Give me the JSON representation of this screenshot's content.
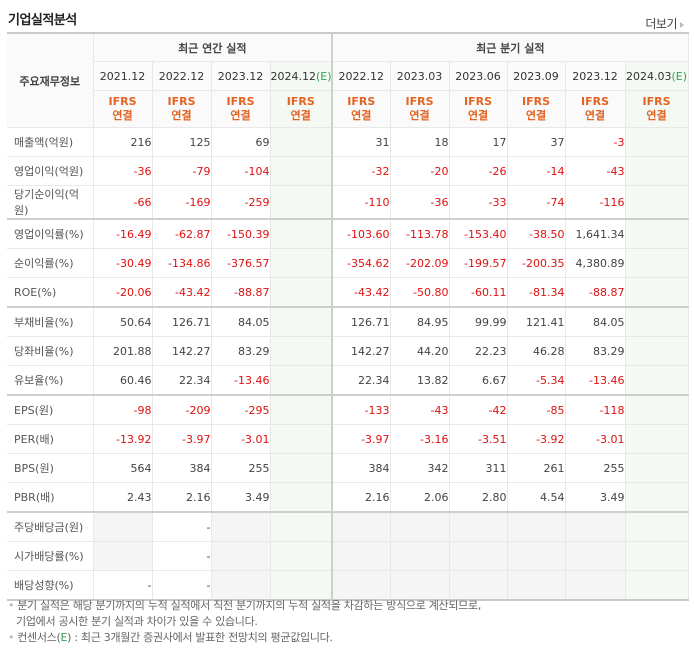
{
  "header": {
    "title": "기업실적분석",
    "more_label": "더보기"
  },
  "table": {
    "label_header": "주요재무정보",
    "group_annual": "최근 연간 실적",
    "group_quarter": "최근 분기 실적",
    "periods": [
      {
        "date": "2021.12",
        "est": ""
      },
      {
        "date": "2022.12",
        "est": ""
      },
      {
        "date": "2023.12",
        "est": ""
      },
      {
        "date": "2024.12",
        "est": "(E)"
      },
      {
        "date": "2022.12",
        "est": ""
      },
      {
        "date": "2023.03",
        "est": ""
      },
      {
        "date": "2023.06",
        "est": ""
      },
      {
        "date": "2023.09",
        "est": ""
      },
      {
        "date": "2023.12",
        "est": ""
      },
      {
        "date": "2024.03",
        "est": "(E)"
      }
    ],
    "standard_line1": "IFRS",
    "standard_line2": "연결",
    "rows": [
      {
        "label": "매출액(억원)",
        "values": [
          "216",
          "125",
          "69",
          "",
          "31",
          "18",
          "17",
          "37",
          "-3",
          ""
        ]
      },
      {
        "label": "영업이익(억원)",
        "values": [
          "-36",
          "-79",
          "-104",
          "",
          "-32",
          "-20",
          "-26",
          "-14",
          "-43",
          ""
        ]
      },
      {
        "label": "당기순이익(억원)",
        "values": [
          "-66",
          "-169",
          "-259",
          "",
          "-110",
          "-36",
          "-33",
          "-74",
          "-116",
          ""
        ]
      },
      {
        "label": "영업이익률(%)",
        "values": [
          "-16.49",
          "-62.87",
          "-150.39",
          "",
          "-103.60",
          "-113.78",
          "-153.40",
          "-38.50",
          "1,641.34",
          ""
        ]
      },
      {
        "label": "순이익률(%)",
        "values": [
          "-30.49",
          "-134.86",
          "-376.57",
          "",
          "-354.62",
          "-202.09",
          "-199.57",
          "-200.35",
          "4,380.89",
          ""
        ]
      },
      {
        "label": "ROE(%)",
        "values": [
          "-20.06",
          "-43.42",
          "-88.87",
          "",
          "-43.42",
          "-50.80",
          "-60.11",
          "-81.34",
          "-88.87",
          ""
        ]
      },
      {
        "label": "부채비율(%)",
        "values": [
          "50.64",
          "126.71",
          "84.05",
          "",
          "126.71",
          "84.95",
          "99.99",
          "121.41",
          "84.05",
          ""
        ]
      },
      {
        "label": "당좌비율(%)",
        "values": [
          "201.88",
          "142.27",
          "83.29",
          "",
          "142.27",
          "44.20",
          "22.23",
          "46.28",
          "83.29",
          ""
        ]
      },
      {
        "label": "유보율(%)",
        "values": [
          "60.46",
          "22.34",
          "-13.46",
          "",
          "22.34",
          "13.82",
          "6.67",
          "-5.34",
          "-13.46",
          ""
        ]
      },
      {
        "label": "EPS(원)",
        "values": [
          "-98",
          "-209",
          "-295",
          "",
          "-133",
          "-43",
          "-42",
          "-85",
          "-118",
          ""
        ]
      },
      {
        "label": "PER(배)",
        "values": [
          "-13.92",
          "-3.97",
          "-3.01",
          "",
          "-3.97",
          "-3.16",
          "-3.51",
          "-3.92",
          "-3.01",
          ""
        ]
      },
      {
        "label": "BPS(원)",
        "values": [
          "564",
          "384",
          "255",
          "",
          "384",
          "342",
          "311",
          "261",
          "255",
          ""
        ]
      },
      {
        "label": "PBR(배)",
        "values": [
          "2.43",
          "2.16",
          "3.49",
          "",
          "2.16",
          "2.06",
          "2.80",
          "4.54",
          "3.49",
          ""
        ]
      },
      {
        "label": "주당배당금(원)",
        "values": [
          "",
          "-",
          "",
          "",
          "",
          "",
          "",
          "",
          "",
          ""
        ]
      },
      {
        "label": "시가배당률(%)",
        "values": [
          "",
          "-",
          "",
          "",
          "",
          "",
          "",
          "",
          "",
          ""
        ]
      },
      {
        "label": "배당성향(%)",
        "values": [
          "-",
          "-",
          "",
          "",
          "",
          "",
          "",
          "",
          "",
          ""
        ]
      }
    ]
  },
  "notes": {
    "line1": "분기 실적은 해당 분기까지의 누적 실적에서 직전 분기까지의 누적 실적을 차감하는 방식으로 계산되므로,",
    "line2": "기업에서 공시한 분기 실적과 차이가 있을 수 있습니다.",
    "line3_prefix": "컨센서스(",
    "line3_e": "E",
    "line3_suffix": ") : 최근 3개월간 증권사에서 발표한 전망치의 평균값입니다."
  },
  "colors": {
    "negative": "#e01010",
    "ifrs": "#e46321",
    "estimate": "#2ea34a",
    "estimate_bg": "#f4f9f4",
    "empty_bg": "#f5f5f5"
  }
}
